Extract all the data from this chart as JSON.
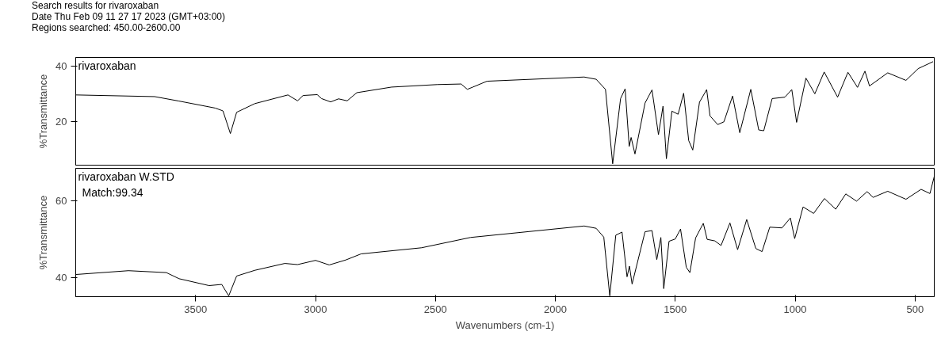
{
  "chart_data": [
    {
      "type": "line",
      "annotations": [
        "Search results for  rivaroxaban",
        "Date  Thu Feb 09 11 27 17 2023 (GMT+03:00)",
        "Regions searched: 450.00-2600.00"
      ],
      "ylabel": "%Transmittance",
      "xlim": [
        4000,
        420
      ],
      "xticks": [
        3500,
        3000,
        2500,
        2000,
        1500,
        1000,
        500
      ],
      "ylim": [
        4.5,
        43
      ],
      "yticks": [
        20,
        40
      ],
      "tick_labels": "y",
      "grid": false,
      "line_style": "solid",
      "marker": "none",
      "series": [
        {
          "name": "rivaroxaban",
          "color": "#000000",
          "x": [
            4000,
            3671,
            3569,
            3418,
            3386,
            3355,
            3329,
            3253,
            3115,
            3075,
            3052,
            2993,
            2975,
            2937,
            2904,
            2868,
            2828,
            2683,
            2492,
            2393,
            2367,
            2344,
            2285,
            1880,
            1830,
            1791,
            1761,
            1728,
            1709,
            1692,
            1684,
            1668,
            1626,
            1597,
            1570,
            1551,
            1537,
            1514,
            1488,
            1465,
            1444,
            1427,
            1399,
            1369,
            1355,
            1323,
            1297,
            1261,
            1231,
            1185,
            1152,
            1131,
            1096,
            1043,
            1014,
            994,
            955,
            918,
            879,
            823,
            780,
            740,
            709,
            690,
            614,
            538,
            487,
            425
          ],
          "values": [
            29.6,
            29.0,
            27.4,
            24.9,
            23.9,
            15.8,
            23.4,
            26.5,
            29.6,
            27.5,
            29.4,
            29.7,
            28.3,
            27.1,
            28.2,
            27.5,
            30.4,
            32.4,
            33.3,
            33.5,
            31.6,
            32.4,
            34.5,
            36.0,
            35.2,
            31.6,
            5.0,
            28.3,
            31.8,
            11.2,
            14.4,
            8.5,
            26.7,
            31.4,
            15.4,
            25.6,
            6.8,
            23.8,
            22.7,
            30.2,
            13.3,
            9.9,
            27.0,
            31.5,
            22.1,
            19.0,
            20.0,
            29.2,
            16.1,
            31.6,
            17.1,
            16.8,
            28.3,
            28.8,
            31.5,
            19.8,
            35.6,
            30.0,
            37.8,
            28.8,
            37.7,
            32.3,
            38.1,
            32.8,
            37.5,
            34.8,
            39.0,
            41.5
          ]
        }
      ]
    },
    {
      "type": "line",
      "annotations": [
        "Match:99.34"
      ],
      "xlabel": "Wavenumbers (cm-1)",
      "ylabel": "%Transmittance",
      "xlim": [
        4000,
        420
      ],
      "xticks": [
        3500,
        3000,
        2500,
        2000,
        1500,
        1000,
        500
      ],
      "ylim": [
        35,
        68.6
      ],
      "yticks": [
        40,
        60
      ],
      "grid": false,
      "line_style": "solid",
      "marker": "none",
      "series": [
        {
          "name": "rivaroxaban W.STD",
          "color": "#000000",
          "x": [
            4000,
            3780,
            3622,
            3569,
            3444,
            3391,
            3362,
            3329,
            3253,
            3128,
            3075,
            3000,
            2943,
            2874,
            2810,
            2558,
            2354,
            1880,
            1830,
            1798,
            1773,
            1748,
            1722,
            1701,
            1691,
            1680,
            1626,
            1597,
            1577,
            1560,
            1548,
            1526,
            1500,
            1478,
            1454,
            1439,
            1415,
            1383,
            1367,
            1335,
            1309,
            1272,
            1240,
            1202,
            1164,
            1138,
            1106,
            1055,
            1020,
            1002,
            967,
            923,
            878,
            831,
            789,
            744,
            700,
            675,
            614,
            538,
            475,
            438,
            420
          ],
          "values": [
            40.8,
            41.8,
            41.3,
            39.7,
            37.9,
            38.2,
            35.2,
            40.4,
            41.9,
            43.7,
            43.4,
            44.5,
            43.3,
            44.6,
            46.2,
            47.8,
            50.5,
            53.5,
            52.9,
            50.6,
            35.2,
            51.1,
            51.9,
            40.2,
            43.0,
            38.3,
            52.0,
            52.3,
            44.7,
            50.5,
            37.1,
            49.5,
            50.1,
            52.7,
            42.7,
            41.3,
            50.4,
            54.2,
            50.0,
            49.6,
            48.4,
            54.3,
            47.3,
            55.2,
            47.6,
            46.8,
            53.2,
            53.0,
            55.6,
            50.2,
            58.5,
            56.8,
            60.7,
            57.9,
            61.9,
            60.0,
            62.5,
            61.0,
            62.6,
            60.5,
            63.1,
            62.0,
            66.5
          ]
        }
      ]
    }
  ]
}
